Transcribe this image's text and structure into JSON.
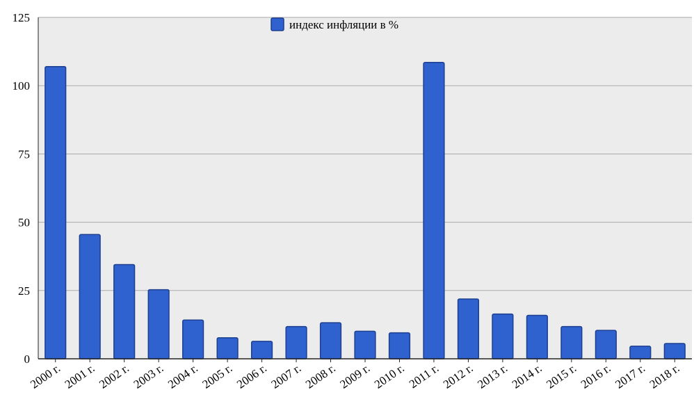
{
  "chart_data": {
    "type": "bar",
    "title": "",
    "xlabel": "",
    "ylabel": "",
    "categories": [
      "2000 г.",
      "2001 г.",
      "2002 г.",
      "2003 г.",
      "2004 г.",
      "2005 г.",
      "2006 г.",
      "2007 г.",
      "2008 г.",
      "2009 г.",
      "2010 г.",
      "2011 г.",
      "2012 г.",
      "2013 г.",
      "2014 г.",
      "2015 г.",
      "2016 г.",
      "2017 г.",
      "2018 г."
    ],
    "series": [
      {
        "name": "индекс инфляции в %",
        "values": [
          107,
          45.5,
          34.5,
          25.3,
          14.2,
          7.7,
          6.4,
          11.8,
          13.2,
          10.1,
          9.5,
          108.5,
          21.9,
          16.4,
          15.9,
          11.8,
          10.4,
          4.6,
          5.6
        ]
      }
    ],
    "ylim": [
      0,
      125
    ],
    "yticks": [
      0,
      25,
      50,
      75,
      100,
      125
    ],
    "grid": true,
    "legend_position": "top-center",
    "colors": {
      "bar_fill": "#2f61cf",
      "bar_stroke": "#1d3f8f",
      "plot_background": "#ececec",
      "gridline": "#a9a9a9",
      "axis": "#222222"
    }
  }
}
